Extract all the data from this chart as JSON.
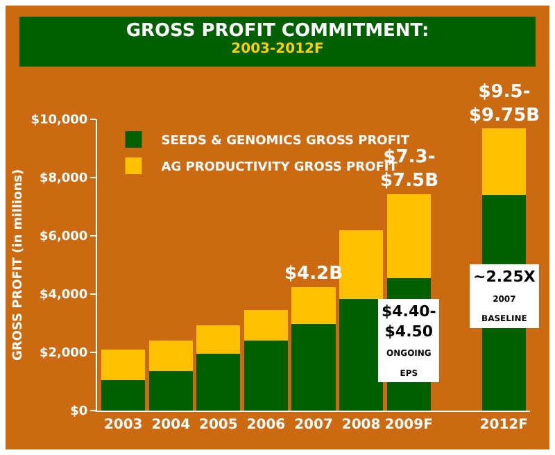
{
  "chart_data": {
    "type": "bar",
    "title": "GROSS PROFIT COMMITMENT:",
    "subtitle": "2003-2012F",
    "ylabel": "GROSS PROFIT (in millions)",
    "categories": [
      "2003",
      "2004",
      "2005",
      "2006",
      "2007",
      "2008",
      "2009F",
      null,
      "2012F"
    ],
    "stacked": true,
    "series": [
      {
        "name": "SEEDS & GENOMICS GROSS PROFIT",
        "color": "#006000",
        "values": [
          1050,
          1350,
          1950,
          2400,
          2970,
          3830,
          4550,
          null,
          7400
        ]
      },
      {
        "name": "AG PRODUCTIVITY GROSS PROFIT",
        "color": "#ffc000",
        "values": [
          1050,
          1050,
          980,
          1050,
          1280,
          2370,
          2880,
          null,
          2280
        ]
      }
    ],
    "ylim": [
      0,
      10000
    ],
    "yticks": [
      {
        "value": 0,
        "label": "$0"
      },
      {
        "value": 2000,
        "label": "$2,000"
      },
      {
        "value": 4000,
        "label": "$4,000"
      },
      {
        "value": 6000,
        "label": "$6,000"
      },
      {
        "value": 8000,
        "label": "$8,000"
      },
      {
        "value": 10000,
        "label": "$10,000"
      }
    ],
    "grid": false,
    "legend": "top left",
    "annotations": [
      {
        "text": "$4.2B",
        "x": "2007",
        "y": 4250
      },
      {
        "text": "$7.3-\n$7.5B",
        "x": "2009F",
        "y": 7430
      },
      "$4.40-\n$4.50\nONGOING\nEPS",
      {
        "text": "$9.5-\n$9.75B",
        "x": "2012F",
        "y": 9680
      },
      "~2.25X\n2007\nBASELINE"
    ]
  }
}
